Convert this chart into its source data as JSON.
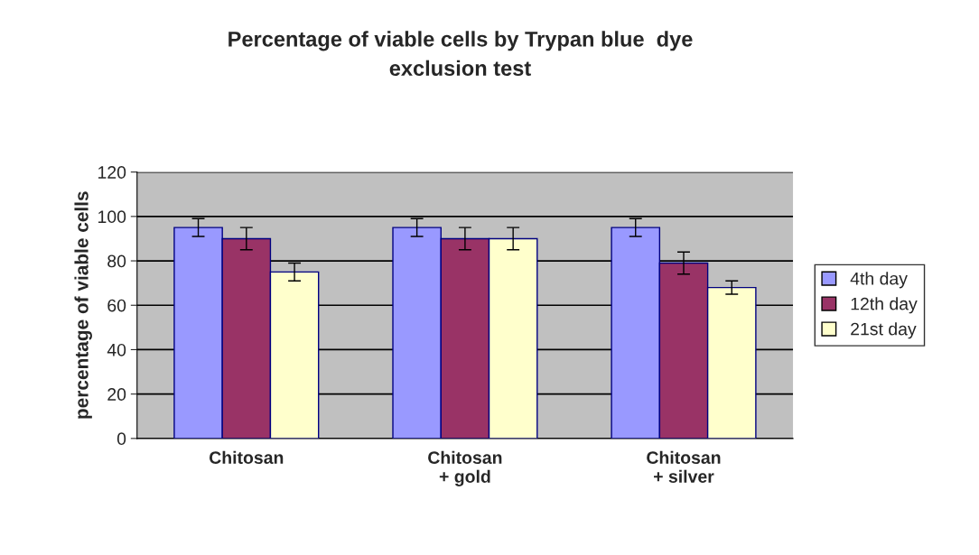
{
  "chart_data": {
    "type": "bar",
    "title": "Percentage of viable cells by Trypan blue  dye\nexclusion test",
    "ylabel": "percentage of viable cells",
    "categories": [
      "Chitosan",
      "Chitosan\n+ gold",
      "Chitosan\n+ silver"
    ],
    "series": [
      {
        "name": "4th day",
        "color": "#9999ff",
        "values": [
          95,
          95,
          95
        ],
        "errors": [
          4,
          4,
          4
        ]
      },
      {
        "name": "12th day",
        "color": "#993366",
        "values": [
          90,
          90,
          79
        ],
        "errors": [
          5,
          5,
          5
        ]
      },
      {
        "name": "21st day",
        "color": "#ffffcc",
        "values": [
          75,
          90,
          68
        ],
        "errors": [
          4,
          5,
          3
        ]
      }
    ],
    "ylim": [
      0,
      120
    ],
    "yticks": [
      0,
      20,
      40,
      60,
      80,
      100,
      120
    ],
    "grid": "y",
    "legend": "right"
  }
}
